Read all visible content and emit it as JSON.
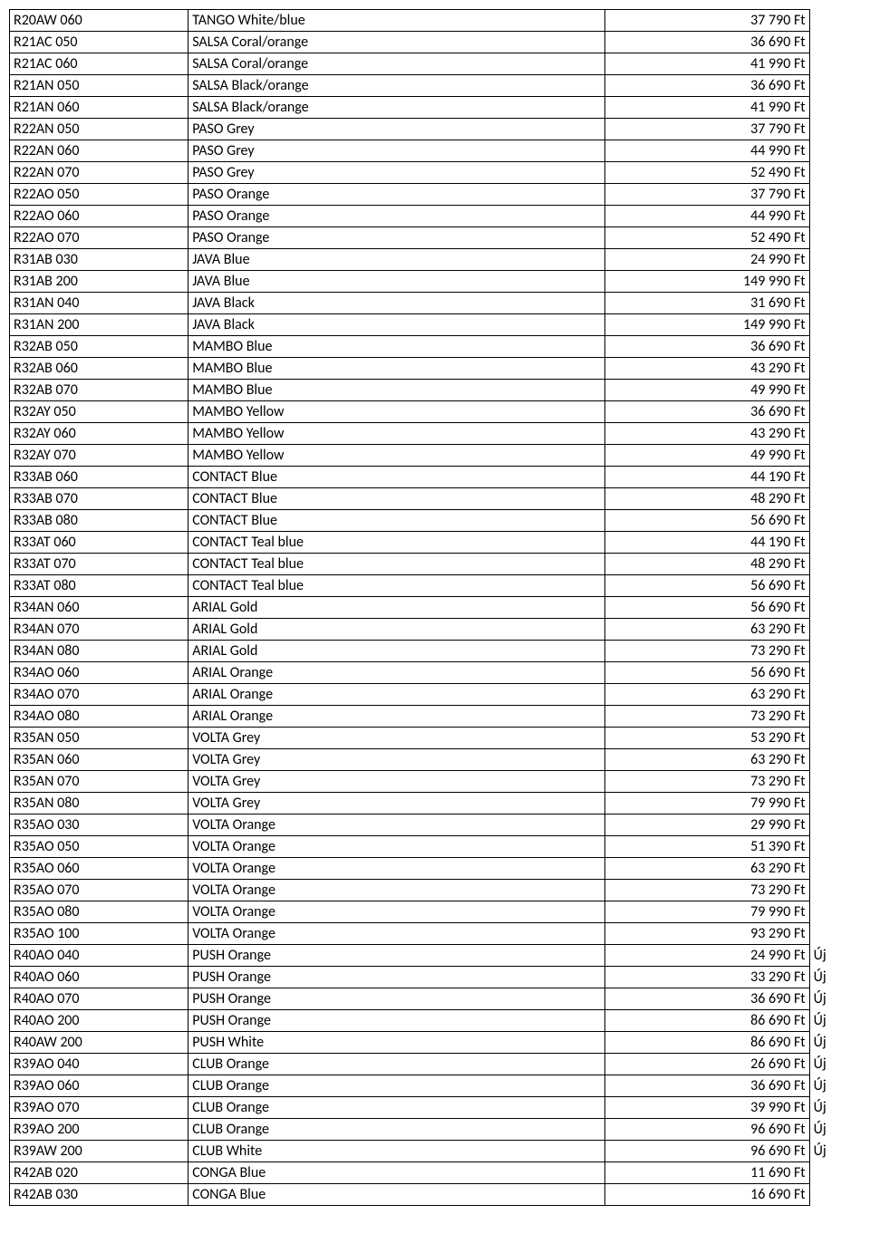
{
  "table": {
    "columns": [
      "code",
      "name",
      "price",
      "note"
    ],
    "column_widths_pct": [
      21,
      49,
      24,
      6
    ],
    "column_align": [
      "left",
      "left",
      "right",
      "left"
    ],
    "font_family": "Calibri, Arial, sans-serif",
    "font_size_pt": 12,
    "border_color": "#000000",
    "background_color": "#ffffff",
    "text_color": "#000000",
    "rows": [
      {
        "code": "R20AW 060",
        "name": "TANGO White/blue",
        "price": "37 790 Ft",
        "note": ""
      },
      {
        "code": "R21AC 050",
        "name": "SALSA Coral/orange",
        "price": "36 690 Ft",
        "note": ""
      },
      {
        "code": "R21AC 060",
        "name": "SALSA Coral/orange",
        "price": "41 990 Ft",
        "note": ""
      },
      {
        "code": "R21AN 050",
        "name": "SALSA Black/orange",
        "price": "36 690 Ft",
        "note": ""
      },
      {
        "code": "R21AN 060",
        "name": "SALSA Black/orange",
        "price": "41 990 Ft",
        "note": ""
      },
      {
        "code": "R22AN 050",
        "name": "PASO Grey",
        "price": "37 790 Ft",
        "note": ""
      },
      {
        "code": "R22AN 060",
        "name": "PASO Grey",
        "price": "44 990 Ft",
        "note": ""
      },
      {
        "code": "R22AN 070",
        "name": "PASO Grey",
        "price": "52 490 Ft",
        "note": ""
      },
      {
        "code": "R22AO 050",
        "name": "PASO Orange",
        "price": "37 790 Ft",
        "note": ""
      },
      {
        "code": "R22AO 060",
        "name": "PASO Orange",
        "price": "44 990 Ft",
        "note": ""
      },
      {
        "code": "R22AO 070",
        "name": "PASO Orange",
        "price": "52 490 Ft",
        "note": ""
      },
      {
        "code": "R31AB 030",
        "name": "JAVA Blue",
        "price": "24 990 Ft",
        "note": ""
      },
      {
        "code": "R31AB 200",
        "name": "JAVA Blue",
        "price": "149 990 Ft",
        "note": ""
      },
      {
        "code": "R31AN 040",
        "name": "JAVA Black",
        "price": "31 690 Ft",
        "note": ""
      },
      {
        "code": "R31AN 200",
        "name": "JAVA Black",
        "price": "149 990 Ft",
        "note": ""
      },
      {
        "code": "R32AB 050",
        "name": "MAMBO Blue",
        "price": "36 690 Ft",
        "note": ""
      },
      {
        "code": "R32AB 060",
        "name": "MAMBO Blue",
        "price": "43 290 Ft",
        "note": ""
      },
      {
        "code": "R32AB 070",
        "name": "MAMBO Blue",
        "price": "49 990 Ft",
        "note": ""
      },
      {
        "code": "R32AY 050",
        "name": "MAMBO Yellow",
        "price": "36 690 Ft",
        "note": ""
      },
      {
        "code": "R32AY 060",
        "name": "MAMBO Yellow",
        "price": "43 290 Ft",
        "note": ""
      },
      {
        "code": "R32AY 070",
        "name": "MAMBO Yellow",
        "price": "49 990 Ft",
        "note": ""
      },
      {
        "code": "R33AB 060",
        "name": "CONTACT Blue",
        "price": "44 190 Ft",
        "note": ""
      },
      {
        "code": "R33AB 070",
        "name": "CONTACT Blue",
        "price": "48 290 Ft",
        "note": ""
      },
      {
        "code": "R33AB 080",
        "name": "CONTACT Blue",
        "price": "56 690 Ft",
        "note": ""
      },
      {
        "code": "R33AT 060",
        "name": "CONTACT Teal blue",
        "price": "44 190 Ft",
        "note": ""
      },
      {
        "code": "R33AT 070",
        "name": "CONTACT Teal blue",
        "price": "48 290 Ft",
        "note": ""
      },
      {
        "code": "R33AT 080",
        "name": "CONTACT Teal blue",
        "price": "56 690 Ft",
        "note": ""
      },
      {
        "code": "R34AN 060",
        "name": "ARIAL Gold",
        "price": "56 690 Ft",
        "note": ""
      },
      {
        "code": "R34AN 070",
        "name": "ARIAL Gold",
        "price": "63 290 Ft",
        "note": ""
      },
      {
        "code": "R34AN 080",
        "name": "ARIAL Gold",
        "price": "73 290 Ft",
        "note": ""
      },
      {
        "code": "R34AO 060",
        "name": "ARIAL Orange",
        "price": "56 690 Ft",
        "note": ""
      },
      {
        "code": "R34AO 070",
        "name": "ARIAL Orange",
        "price": "63 290 Ft",
        "note": ""
      },
      {
        "code": "R34AO 080",
        "name": "ARIAL Orange",
        "price": "73 290 Ft",
        "note": ""
      },
      {
        "code": "R35AN 050",
        "name": "VOLTA Grey",
        "price": "53 290 Ft",
        "note": ""
      },
      {
        "code": "R35AN 060",
        "name": "VOLTA Grey",
        "price": "63 290 Ft",
        "note": ""
      },
      {
        "code": "R35AN 070",
        "name": "VOLTA Grey",
        "price": "73 290 Ft",
        "note": ""
      },
      {
        "code": "R35AN 080",
        "name": "VOLTA Grey",
        "price": "79 990 Ft",
        "note": ""
      },
      {
        "code": "R35AO 030",
        "name": "VOLTA Orange",
        "price": "29 990 Ft",
        "note": ""
      },
      {
        "code": "R35AO 050",
        "name": "VOLTA Orange",
        "price": "51 390 Ft",
        "note": ""
      },
      {
        "code": "R35AO 060",
        "name": "VOLTA Orange",
        "price": "63 290 Ft",
        "note": ""
      },
      {
        "code": "R35AO 070",
        "name": "VOLTA Orange",
        "price": "73 290 Ft",
        "note": ""
      },
      {
        "code": "R35AO 080",
        "name": "VOLTA Orange",
        "price": "79 990 Ft",
        "note": ""
      },
      {
        "code": "R35AO 100",
        "name": "VOLTA Orange",
        "price": "93 290 Ft",
        "note": ""
      },
      {
        "code": "R40AO 040",
        "name": "PUSH Orange",
        "price": "24 990 Ft",
        "note": "Új"
      },
      {
        "code": "R40AO 060",
        "name": "PUSH Orange",
        "price": "33 290 Ft",
        "note": "Új"
      },
      {
        "code": "R40AO 070",
        "name": "PUSH Orange",
        "price": "36 690 Ft",
        "note": "Új"
      },
      {
        "code": "R40AO 200",
        "name": "PUSH Orange",
        "price": "86 690 Ft",
        "note": "Új"
      },
      {
        "code": "R40AW 200",
        "name": "PUSH White",
        "price": "86 690 Ft",
        "note": "Új"
      },
      {
        "code": "R39AO 040",
        "name": "CLUB Orange",
        "price": "26 690 Ft",
        "note": "Új"
      },
      {
        "code": "R39AO 060",
        "name": "CLUB Orange",
        "price": "36 690 Ft",
        "note": "Új"
      },
      {
        "code": "R39AO 070",
        "name": "CLUB Orange",
        "price": "39 990 Ft",
        "note": "Új"
      },
      {
        "code": "R39AO 200",
        "name": "CLUB Orange",
        "price": "96 690 Ft",
        "note": "Új"
      },
      {
        "code": "R39AW 200",
        "name": "CLUB White",
        "price": "96 690 Ft",
        "note": "Új"
      },
      {
        "code": "R42AB 020",
        "name": "CONGA Blue",
        "price": "11 690 Ft",
        "note": ""
      },
      {
        "code": "R42AB 030",
        "name": "CONGA Blue",
        "price": "16 690 Ft",
        "note": ""
      }
    ]
  }
}
